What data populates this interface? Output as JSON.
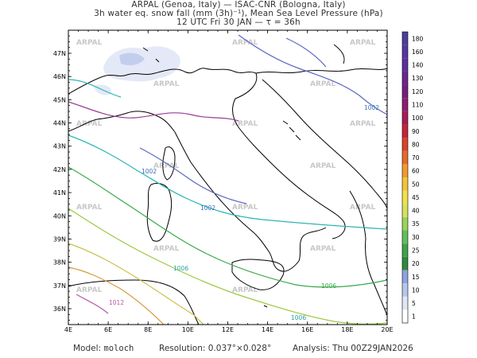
{
  "header": {
    "line1": "ARPAL (Genoa, Italy)  —  ISAC-CNR (Bologna, Italy)",
    "line2": "3h water eq. snow fall (mm (3h)⁻¹), Mean Sea Level Pressure (hPa)",
    "line3": "12 UTC Fri 30 JAN  —  τ = 36h"
  },
  "axes": {
    "lon_labels": [
      "4E",
      "6E",
      "8E",
      "10E",
      "12E",
      "14E",
      "16E",
      "18E",
      "20E"
    ],
    "lat_labels": [
      "36N",
      "37N",
      "38N",
      "39N",
      "40N",
      "41N",
      "42N",
      "43N",
      "44N",
      "45N",
      "46N",
      "47N"
    ]
  },
  "colorbar": {
    "levels": [
      "1",
      "5",
      "10",
      "15",
      "20",
      "25",
      "30",
      "35",
      "40",
      "45",
      "50",
      "60",
      "70",
      "80",
      "90",
      "100",
      "110",
      "120",
      "130",
      "140",
      "160",
      "180"
    ],
    "colors": [
      "#ffffff",
      "#dfe6f5",
      "#b9c6ec",
      "#8fa2de",
      "#2e8b3d",
      "#3ea34a",
      "#62c05a",
      "#9ad45b",
      "#d7e25a",
      "#f0e04a",
      "#f3c43a",
      "#f09a32",
      "#e56b2c",
      "#d9432a",
      "#c4263a",
      "#a51e55",
      "#8b1f6e",
      "#741f80",
      "#6a2690",
      "#5f2e9e",
      "#54389f",
      "#4a3f9c"
    ]
  },
  "watermark": "ARPAL",
  "isobar_labels": [
    "1002",
    "1002",
    "1002",
    "1006",
    "1006",
    "1006",
    "1012"
  ],
  "footer": {
    "model_label": "Model:",
    "model_value": "moloch",
    "resolution_label": "Resolution:",
    "resolution_value": "0.037°×0.028°",
    "analysis_label": "Analysis:",
    "analysis_value": "Thu  00Z29JAN2026"
  }
}
